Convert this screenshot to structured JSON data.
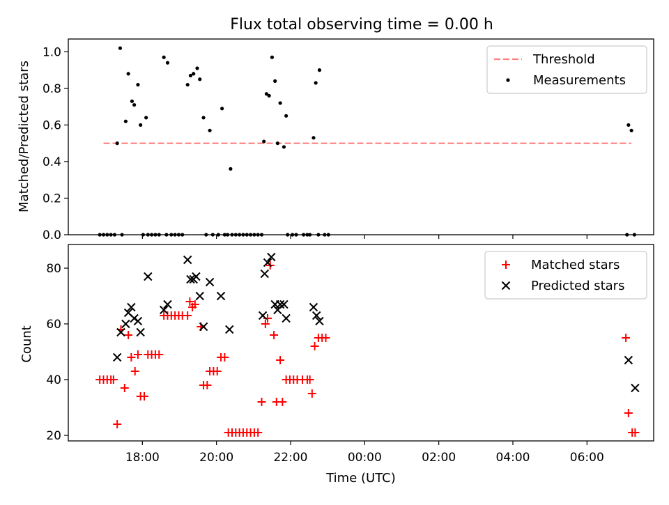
{
  "figure": {
    "title": "Flux total observing time = 0.00 h",
    "xlabel": "Time (UTC)",
    "x_range_hours": [
      16.0,
      31.8
    ],
    "x_ticks": [
      {
        "h": 18,
        "label": "18:00"
      },
      {
        "h": 20,
        "label": "20:00"
      },
      {
        "h": 22,
        "label": "22:00"
      },
      {
        "h": 24,
        "label": "00:00"
      },
      {
        "h": 26,
        "label": "02:00"
      },
      {
        "h": 28,
        "label": "04:00"
      },
      {
        "h": 30,
        "label": "06:00"
      }
    ]
  },
  "chart_data": [
    {
      "type": "scatter",
      "ylabel": "Matched/Predicted stars",
      "ylim": [
        0,
        1.07
      ],
      "y_ticks": [
        "0.0",
        "0.2",
        "0.4",
        "0.6",
        "0.8",
        "1.0"
      ],
      "legend_position": "top-right",
      "threshold": {
        "name": "Threshold",
        "y": 0.5,
        "x_range": [
          16.95,
          31.2
        ],
        "color": "#ff7f7f"
      },
      "series": [
        {
          "name": "Measurements",
          "color": "#000000",
          "points": [
            [
              16.85,
              0
            ],
            [
              16.95,
              0
            ],
            [
              17.05,
              0
            ],
            [
              17.15,
              0
            ],
            [
              17.25,
              0
            ],
            [
              17.32,
              0.5
            ],
            [
              17.4,
              1.02
            ],
            [
              17.45,
              0
            ],
            [
              17.55,
              0.62
            ],
            [
              17.62,
              0.88
            ],
            [
              17.72,
              0.73
            ],
            [
              17.78,
              0.71
            ],
            [
              17.88,
              0.82
            ],
            [
              17.95,
              0.6
            ],
            [
              18.02,
              0
            ],
            [
              18.1,
              0.64
            ],
            [
              18.15,
              0
            ],
            [
              18.25,
              0
            ],
            [
              18.35,
              0
            ],
            [
              18.45,
              0
            ],
            [
              18.58,
              0.97
            ],
            [
              18.65,
              0
            ],
            [
              18.68,
              0.94
            ],
            [
              18.78,
              0
            ],
            [
              18.88,
              0
            ],
            [
              18.98,
              0
            ],
            [
              19.08,
              0
            ],
            [
              19.22,
              0.82
            ],
            [
              19.3,
              0.87
            ],
            [
              19.38,
              0.88
            ],
            [
              19.48,
              0.91
            ],
            [
              19.55,
              0.85
            ],
            [
              19.65,
              0.64
            ],
            [
              19.72,
              0
            ],
            [
              19.82,
              0.57
            ],
            [
              19.9,
              0
            ],
            [
              20.05,
              0
            ],
            [
              20.15,
              0.69
            ],
            [
              20.22,
              0
            ],
            [
              20.3,
              0
            ],
            [
              20.38,
              0.36
            ],
            [
              20.42,
              0
            ],
            [
              20.52,
              0
            ],
            [
              20.62,
              0
            ],
            [
              20.72,
              0
            ],
            [
              20.82,
              0
            ],
            [
              20.92,
              0
            ],
            [
              21.02,
              0
            ],
            [
              21.12,
              0
            ],
            [
              21.22,
              0
            ],
            [
              21.28,
              0.51
            ],
            [
              21.35,
              0.77
            ],
            [
              21.42,
              0.76
            ],
            [
              21.5,
              0.97
            ],
            [
              21.58,
              0.84
            ],
            [
              21.65,
              0.5
            ],
            [
              21.72,
              0.72
            ],
            [
              21.82,
              0.48
            ],
            [
              21.88,
              0.65
            ],
            [
              21.92,
              0
            ],
            [
              22.05,
              0
            ],
            [
              22.15,
              0
            ],
            [
              22.35,
              0
            ],
            [
              22.45,
              0
            ],
            [
              22.52,
              0
            ],
            [
              22.62,
              0.53
            ],
            [
              22.68,
              0.83
            ],
            [
              22.75,
              0
            ],
            [
              22.78,
              0.9
            ],
            [
              22.92,
              0
            ],
            [
              23.02,
              0
            ],
            [
              31.08,
              0
            ],
            [
              31.12,
              0.6
            ],
            [
              31.2,
              0.57
            ],
            [
              31.28,
              0
            ]
          ]
        }
      ]
    },
    {
      "type": "scatter",
      "ylabel": "Count",
      "ylim": [
        18,
        88.5
      ],
      "y_ticks": [
        "20",
        "40",
        "60",
        "80"
      ],
      "legend_position": "top-right",
      "series": [
        {
          "name": "Matched stars",
          "color": "#ff0000",
          "marker": "plus",
          "points": [
            [
              16.85,
              40
            ],
            [
              16.95,
              40
            ],
            [
              17.05,
              40
            ],
            [
              17.15,
              40
            ],
            [
              17.22,
              40
            ],
            [
              17.32,
              24
            ],
            [
              17.42,
              58
            ],
            [
              17.52,
              37
            ],
            [
              17.62,
              56
            ],
            [
              17.7,
              48
            ],
            [
              17.8,
              43
            ],
            [
              17.88,
              49
            ],
            [
              17.95,
              34
            ],
            [
              18.05,
              34
            ],
            [
              18.15,
              49
            ],
            [
              18.25,
              49
            ],
            [
              18.35,
              49
            ],
            [
              18.45,
              49
            ],
            [
              18.58,
              63
            ],
            [
              18.68,
              63
            ],
            [
              18.78,
              63
            ],
            [
              18.88,
              63
            ],
            [
              18.98,
              63
            ],
            [
              19.08,
              63
            ],
            [
              19.22,
              63
            ],
            [
              19.28,
              68
            ],
            [
              19.35,
              66
            ],
            [
              19.42,
              67
            ],
            [
              19.58,
              59
            ],
            [
              19.65,
              38
            ],
            [
              19.75,
              38
            ],
            [
              19.82,
              43
            ],
            [
              19.92,
              43
            ],
            [
              20.02,
              43
            ],
            [
              20.12,
              48
            ],
            [
              20.22,
              48
            ],
            [
              20.32,
              21
            ],
            [
              20.42,
              21
            ],
            [
              20.52,
              21
            ],
            [
              20.62,
              21
            ],
            [
              20.72,
              21
            ],
            [
              20.82,
              21
            ],
            [
              20.92,
              21
            ],
            [
              21.02,
              21
            ],
            [
              21.12,
              21
            ],
            [
              21.22,
              32
            ],
            [
              21.32,
              60
            ],
            [
              21.38,
              62
            ],
            [
              21.45,
              81
            ],
            [
              21.55,
              56
            ],
            [
              21.62,
              32
            ],
            [
              21.72,
              47
            ],
            [
              21.78,
              32
            ],
            [
              21.88,
              40
            ],
            [
              21.98,
              40
            ],
            [
              22.08,
              40
            ],
            [
              22.18,
              40
            ],
            [
              22.32,
              40
            ],
            [
              22.45,
              40
            ],
            [
              22.52,
              40
            ],
            [
              22.58,
              35
            ],
            [
              22.65,
              52
            ],
            [
              22.75,
              55
            ],
            [
              22.85,
              55
            ],
            [
              22.95,
              55
            ],
            [
              31.05,
              55
            ],
            [
              31.12,
              28
            ],
            [
              31.22,
              21
            ],
            [
              31.3,
              21
            ]
          ]
        },
        {
          "name": "Predicted stars",
          "color": "#000000",
          "marker": "x",
          "points": [
            [
              17.32,
              48
            ],
            [
              17.42,
              57
            ],
            [
              17.55,
              60
            ],
            [
              17.62,
              64
            ],
            [
              17.7,
              66
            ],
            [
              17.78,
              62
            ],
            [
              17.88,
              61
            ],
            [
              17.95,
              57
            ],
            [
              18.15,
              77
            ],
            [
              18.58,
              65
            ],
            [
              18.68,
              67
            ],
            [
              19.22,
              83
            ],
            [
              19.3,
              76
            ],
            [
              19.38,
              76
            ],
            [
              19.45,
              77
            ],
            [
              19.55,
              70
            ],
            [
              19.65,
              59
            ],
            [
              19.82,
              75
            ],
            [
              20.12,
              70
            ],
            [
              20.35,
              58
            ],
            [
              21.25,
              63
            ],
            [
              21.3,
              78
            ],
            [
              21.38,
              82
            ],
            [
              21.48,
              84
            ],
            [
              21.58,
              67
            ],
            [
              21.65,
              65
            ],
            [
              21.72,
              67
            ],
            [
              21.82,
              67
            ],
            [
              21.88,
              62
            ],
            [
              22.62,
              66
            ],
            [
              22.7,
              63
            ],
            [
              22.78,
              61
            ],
            [
              31.12,
              47
            ],
            [
              31.3,
              37
            ]
          ]
        }
      ]
    }
  ]
}
